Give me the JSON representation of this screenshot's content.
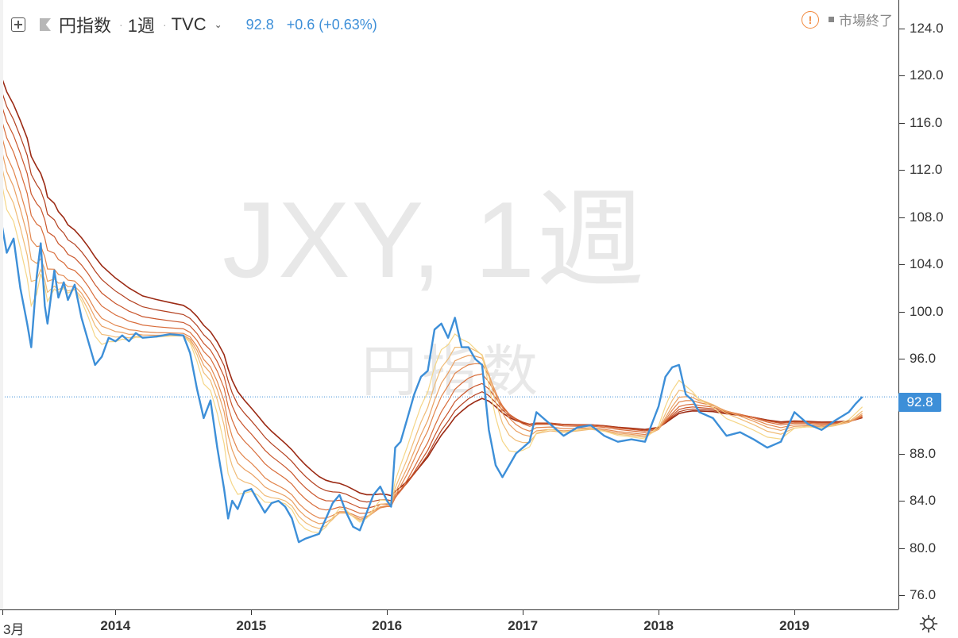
{
  "header": {
    "symbol_name": "円指数",
    "interval": "1週",
    "exchange": "TVC",
    "last_value": "92.8",
    "change": "+0.6 (+0.63%)",
    "icons": {
      "expand": "expand-icon",
      "flag": "flag-icon",
      "dropdown": "chevron-down-icon"
    }
  },
  "status": {
    "text": "市場終了",
    "icon": "alert-icon"
  },
  "watermark": {
    "main": "JXY, 1週",
    "sub": "円指数"
  },
  "price_tag": "92.8",
  "colors": {
    "price_line": "#3d8fd8",
    "ribbon": [
      "#9b2a14",
      "#b3401f",
      "#c9552b",
      "#d86c3a",
      "#e2854c",
      "#eaa062",
      "#f0bb76",
      "#f5d687"
    ]
  },
  "chart_data": {
    "type": "line",
    "title": "",
    "xlabel": "",
    "ylabel": "",
    "ylim": [
      74.8,
      126.4
    ],
    "y_ticks": [
      "124.0",
      "120.0",
      "116.0",
      "112.0",
      "108.0",
      "104.0",
      "100.0",
      "96.0",
      "92.0",
      "88.0",
      "84.0",
      "80.0",
      "76.0"
    ],
    "x_ticks": [
      "3月",
      "2014",
      "2015",
      "2016",
      "2017",
      "2018",
      "2019"
    ],
    "x_tick_years": [
      2013.17,
      2014.0,
      2015.0,
      2016.0,
      2017.0,
      2018.0,
      2019.0
    ],
    "xlim": [
      2013.15,
      2019.76
    ],
    "current_value": 92.8,
    "series": [
      {
        "x": [
          2013.16,
          2013.2,
          2013.25,
          2013.3,
          2013.35,
          2013.38,
          2013.42,
          2013.45,
          2013.48,
          2013.5,
          2013.55,
          2013.58,
          2013.62,
          2013.65,
          2013.7,
          2013.75,
          2013.8,
          2013.85,
          2013.9,
          2013.95,
          2014.0,
          2014.05,
          2014.1,
          2014.15,
          2014.2,
          2014.3,
          2014.4,
          2014.5,
          2014.55,
          2014.6,
          2014.65,
          2014.7,
          2014.75,
          2014.8,
          2014.83,
          2014.86,
          2014.9,
          2014.95,
          2015.0,
          2015.05,
          2015.1,
          2015.15,
          2015.2,
          2015.25,
          2015.3,
          2015.35,
          2015.4,
          2015.45,
          2015.5,
          2015.55,
          2015.6,
          2015.65,
          2015.7,
          2015.75,
          2015.8,
          2015.85,
          2015.9,
          2015.95,
          2016.0,
          2016.03,
          2016.06,
          2016.1,
          2016.15,
          2016.2,
          2016.25,
          2016.3,
          2016.35,
          2016.4,
          2016.45,
          2016.5,
          2016.55,
          2016.6,
          2016.65,
          2016.7,
          2016.75,
          2016.8,
          2016.85,
          2016.9,
          2016.95,
          2017.0,
          2017.05,
          2017.1,
          2017.2,
          2017.3,
          2017.4,
          2017.5,
          2017.6,
          2017.7,
          2017.8,
          2017.9,
          2018.0,
          2018.05,
          2018.1,
          2018.15,
          2018.2,
          2018.25,
          2018.3,
          2018.4,
          2018.5,
          2018.6,
          2018.7,
          2018.8,
          2018.9,
          2019.0,
          2019.1,
          2019.2,
          2019.3,
          2019.4,
          2019.45,
          2019.5
        ],
        "values": [
          107.6,
          105.0,
          106.2,
          102.0,
          99.0,
          97.0,
          103.0,
          105.8,
          100.5,
          99.0,
          103.5,
          101.2,
          102.5,
          101.0,
          102.3,
          99.5,
          97.5,
          95.5,
          96.2,
          97.8,
          97.5,
          98.0,
          97.5,
          98.2,
          97.8,
          97.9,
          98.1,
          98.0,
          96.5,
          93.5,
          91.0,
          92.5,
          88.5,
          85.0,
          82.5,
          84.0,
          83.3,
          84.8,
          85.0,
          84.0,
          83.0,
          83.8,
          84.0,
          83.5,
          82.5,
          80.5,
          80.8,
          81.0,
          81.2,
          82.5,
          83.8,
          84.5,
          83.0,
          81.8,
          81.5,
          83.0,
          84.5,
          85.2,
          84.0,
          83.5,
          88.5,
          89.0,
          91.0,
          93.0,
          94.5,
          95.0,
          98.5,
          99.0,
          97.8,
          99.5,
          97.0,
          97.0,
          96.0,
          95.5,
          90.0,
          87.0,
          86.0,
          87.0,
          88.0,
          88.5,
          89.0,
          91.5,
          90.5,
          89.5,
          90.2,
          90.4,
          89.5,
          89.0,
          89.2,
          89.0,
          92.0,
          94.5,
          95.3,
          95.5,
          93.0,
          92.5,
          91.5,
          91.0,
          89.5,
          89.8,
          89.2,
          88.5,
          89.0,
          91.5,
          90.5,
          90.0,
          90.8,
          91.5,
          92.2,
          92.8
        ]
      }
    ]
  }
}
